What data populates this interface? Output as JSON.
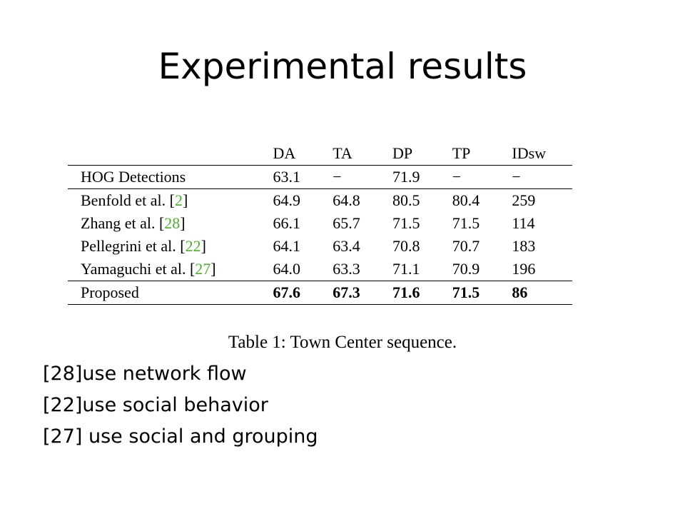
{
  "slide": {
    "title": "Experimental results"
  },
  "table": {
    "columns": [
      "",
      "DA",
      "TA",
      "DP",
      "TP",
      "IDsw"
    ],
    "baseline": {
      "method": "HOG Detections",
      "values": [
        "63.1",
        "−",
        "71.9",
        "−",
        "−"
      ]
    },
    "methods": [
      {
        "name": "Benfold et al. ",
        "ref": "2",
        "values": [
          "64.9",
          "64.8",
          "80.5",
          "80.4",
          "259"
        ]
      },
      {
        "name": "Zhang et al. ",
        "ref": "28",
        "values": [
          "66.1",
          "65.7",
          "71.5",
          "71.5",
          "114"
        ]
      },
      {
        "name": "Pellegrini et al. ",
        "ref": "22",
        "values": [
          "64.1",
          "63.4",
          "70.8",
          "70.7",
          "183"
        ]
      },
      {
        "name": "Yamaguchi et al. ",
        "ref": "27",
        "values": [
          "64.0",
          "63.3",
          "71.1",
          "70.9",
          "196"
        ]
      }
    ],
    "proposed": {
      "method": "Proposed",
      "values": [
        "67.6",
        "67.3",
        "71.6",
        "71.5",
        "86"
      ]
    },
    "caption": "Table 1: Town Center sequence.",
    "ref_color": "#4caf2c"
  },
  "notes": [
    "[28]use network flow",
    "[22]use social behavior",
    "[27] use social and grouping"
  ]
}
